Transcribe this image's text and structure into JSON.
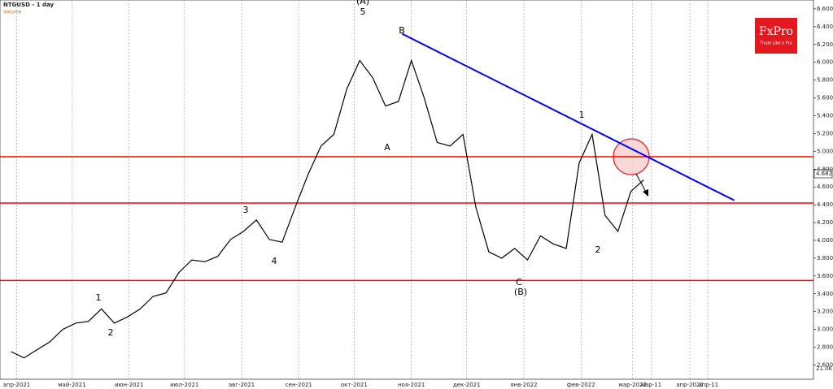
{
  "chart_data": {
    "type": "line",
    "title": "NTGUSD - 1 day",
    "subtitle": "Volume",
    "x": [
      "2021-03-29",
      "2021-04-05",
      "2021-04-12",
      "2021-04-19",
      "2021-04-26",
      "2021-05-03",
      "2021-05-10",
      "2021-05-17",
      "2021-05-24",
      "2021-05-31",
      "2021-06-07",
      "2021-06-14",
      "2021-06-21",
      "2021-06-28",
      "2021-07-05",
      "2021-07-12",
      "2021-07-19",
      "2021-07-26",
      "2021-08-02",
      "2021-08-09",
      "2021-08-16",
      "2021-08-23",
      "2021-08-30",
      "2021-09-06",
      "2021-09-13",
      "2021-09-20",
      "2021-09-27",
      "2021-10-04",
      "2021-10-11",
      "2021-10-18",
      "2021-10-25",
      "2021-11-01",
      "2021-11-08",
      "2021-11-15",
      "2021-11-22",
      "2021-11-29",
      "2021-12-06",
      "2021-12-13",
      "2021-12-20",
      "2021-12-27",
      "2022-01-03",
      "2022-01-10",
      "2022-01-17",
      "2022-01-24",
      "2022-01-31",
      "2022-02-07",
      "2022-02-14",
      "2022-02-21",
      "2022-02-28",
      "2022-03-07"
    ],
    "series": [
      {
        "name": "NTGUSD",
        "color": "#000000",
        "values": [
          2.75,
          2.68,
          2.77,
          2.86,
          3.0,
          3.07,
          3.09,
          3.23,
          3.07,
          3.14,
          3.23,
          3.37,
          3.41,
          3.64,
          3.78,
          3.76,
          3.82,
          4.01,
          4.1,
          4.23,
          4.01,
          3.98,
          4.37,
          4.74,
          5.06,
          5.19,
          5.7,
          6.02,
          5.83,
          5.51,
          5.56,
          6.02,
          5.6,
          5.1,
          5.06,
          5.19,
          4.37,
          3.87,
          3.8,
          3.91,
          3.78,
          4.05,
          3.96,
          3.91,
          4.87,
          5.19,
          4.28,
          4.1,
          4.55,
          4.68
        ]
      }
    ],
    "last_price": {
      "value": 4.682,
      "label": "4.682"
    },
    "volume_label": "21.0K",
    "xlim": [
      "2021-03-23",
      "2022-06-07"
    ],
    "ylim": [
      2.44,
      6.7
    ],
    "xticks": [
      {
        "value": "2021-04-01",
        "label": "апр-2021"
      },
      {
        "value": "2021-05-01",
        "label": "май-2021"
      },
      {
        "value": "2021-06-01",
        "label": "июн-2021"
      },
      {
        "value": "2021-07-01",
        "label": "июл-2021"
      },
      {
        "value": "2021-08-01",
        "label": "авг-2021"
      },
      {
        "value": "2021-09-01",
        "label": "сен-2021"
      },
      {
        "value": "2021-10-01",
        "label": "окт-2021"
      },
      {
        "value": "2021-11-01",
        "label": "ноя-2021"
      },
      {
        "value": "2021-12-01",
        "label": "дек-2021"
      },
      {
        "value": "2022-01-01",
        "label": "янв-2022"
      },
      {
        "value": "2022-02-01",
        "label": "фев-2022"
      },
      {
        "value": "2022-03-01",
        "label": "мар-2022"
      },
      {
        "value": "2022-03-11",
        "label": "мар-11"
      },
      {
        "value": "2022-04-01",
        "label": "апр-2022"
      },
      {
        "value": "2022-04-11",
        "label": "апр-11"
      }
    ],
    "yticks": [
      {
        "value": 6.6,
        "label": "6.600"
      },
      {
        "value": 6.4,
        "label": "6.400"
      },
      {
        "value": 6.2,
        "label": "6.200"
      },
      {
        "value": 6.0,
        "label": "6.000"
      },
      {
        "value": 5.8,
        "label": "5.800"
      },
      {
        "value": 5.6,
        "label": "5.600"
      },
      {
        "value": 5.4,
        "label": "5.400"
      },
      {
        "value": 5.2,
        "label": "5.200"
      },
      {
        "value": 5.0,
        "label": "5.000"
      },
      {
        "value": 4.8,
        "label": "4.800"
      },
      {
        "value": 4.6,
        "label": "4.600"
      },
      {
        "value": 4.4,
        "label": "4.400"
      },
      {
        "value": 4.2,
        "label": "4.200"
      },
      {
        "value": 4.0,
        "label": "4.000"
      },
      {
        "value": 3.8,
        "label": "3.800"
      },
      {
        "value": 3.6,
        "label": "3.600"
      },
      {
        "value": 3.4,
        "label": "3.400"
      },
      {
        "value": 3.2,
        "label": "3.200"
      },
      {
        "value": 3.0,
        "label": "3.000"
      },
      {
        "value": 2.8,
        "label": "2.800"
      },
      {
        "value": 2.6,
        "label": "2.600"
      }
    ],
    "grid": true,
    "hlines": [
      4.94,
      4.42,
      3.55
    ],
    "hline_color": "#ff0000",
    "trendline": {
      "x": [
        "2021-10-27",
        "2022-04-25"
      ],
      "y": [
        6.32,
        4.45
      ],
      "color": "#0000ff"
    },
    "annotations": [
      "(A)",
      "5",
      "B",
      "1",
      "2",
      "3",
      "4",
      "A",
      "C",
      "(B)",
      "1",
      "2"
    ],
    "logo": {
      "brand": "FxPro",
      "tagline": "Trade Like a Pro"
    }
  }
}
